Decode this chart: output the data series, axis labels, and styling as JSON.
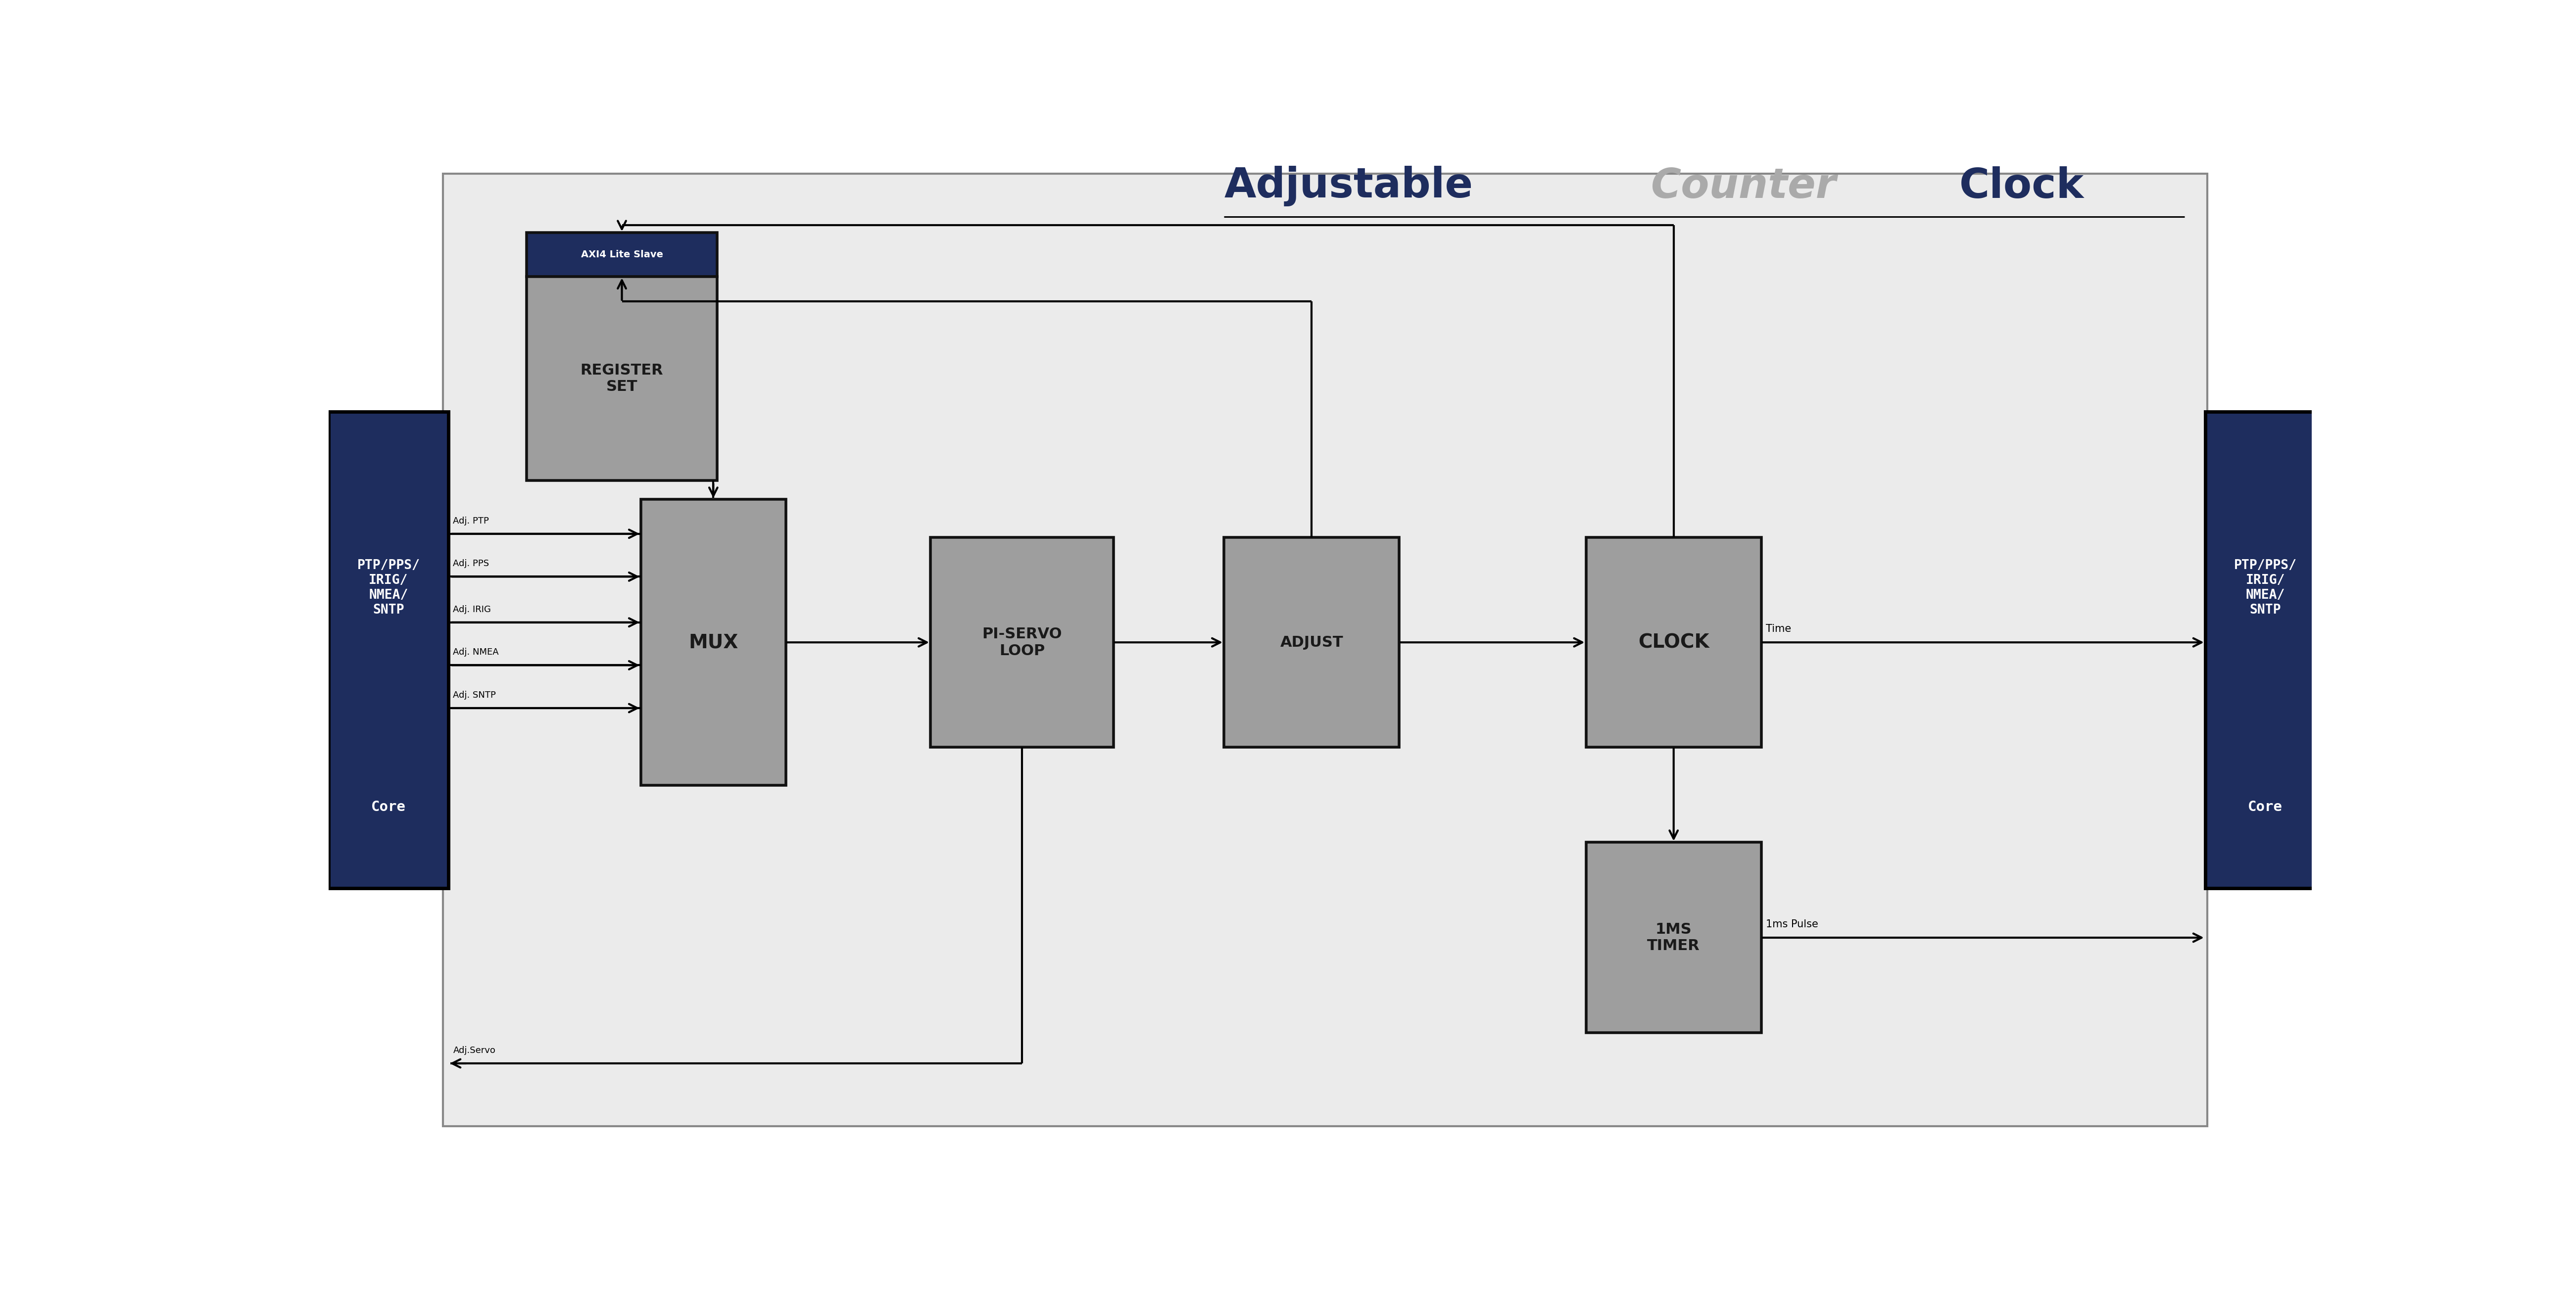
{
  "bg_outer": "#ffffff",
  "bg_inner": "#ebebeb",
  "block_fill": "#9e9e9e",
  "block_edge": "#111111",
  "dark_blue": "#1e2d5e",
  "title_color1": "#1e2d5e",
  "title_color2": "#aaaaaa",
  "axi_label": "AXI4 Lite Slave",
  "reg_label": "REGISTER\nSET",
  "mux_label": "MUX",
  "servo_label": "PI-SERVO\nLOOP",
  "adjust_label": "ADJUST",
  "clock_label": "CLOCK",
  "timer_label": "1MS\nTIMER",
  "adj_labels": [
    "Adj. PTP",
    "Adj. PPS",
    "Adj. IRIG",
    "Adj. NMEA",
    "Adj. SNTP"
  ],
  "adj_servo_label": "Adj.Servo",
  "time_label": "Time",
  "pulse_label": "1ms Pulse",
  "core_line1": "PTP/PPS/",
  "core_line2": "IRIG/",
  "core_line3": "NMEA/",
  "core_line4": "SNTP",
  "core_line5": "Core"
}
